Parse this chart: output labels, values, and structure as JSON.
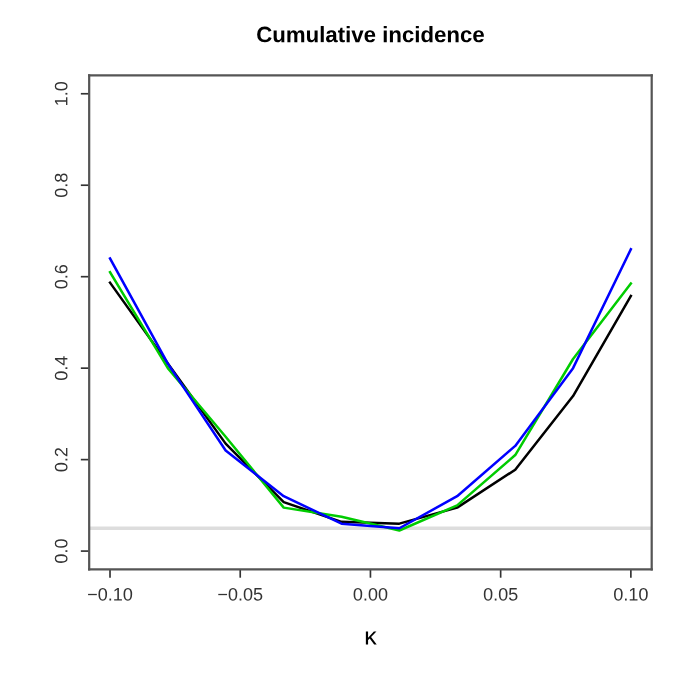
{
  "chart_data": {
    "type": "line",
    "title": "Cumulative incidence",
    "xlabel": "κ",
    "x": [
      -0.1,
      -0.0778,
      -0.0556,
      -0.0333,
      -0.0111,
      0.0111,
      0.0333,
      0.0556,
      0.0778,
      0.1
    ],
    "series": [
      {
        "color": "#000000",
        "values": [
          0.587,
          0.41,
          0.235,
          0.107,
          0.064,
          0.06,
          0.095,
          0.178,
          0.339,
          0.558
        ]
      },
      {
        "color": "#00cc00",
        "values": [
          0.61,
          0.4,
          0.25,
          0.095,
          0.075,
          0.045,
          0.1,
          0.21,
          0.42,
          0.585
        ]
      },
      {
        "color": "#0000ff",
        "values": [
          0.64,
          0.41,
          0.22,
          0.12,
          0.06,
          0.05,
          0.12,
          0.23,
          0.4,
          0.66
        ]
      }
    ],
    "xlim": [
      -0.108,
      0.108
    ],
    "ylim": [
      -0.04,
      1.04
    ],
    "xticks": [
      {
        "value": -0.1,
        "label": "−0.10"
      },
      {
        "value": -0.05,
        "label": "−0.05"
      },
      {
        "value": 0,
        "label": "0.00"
      },
      {
        "value": 0.05,
        "label": "0.05"
      },
      {
        "value": 0.1,
        "label": "0.10"
      }
    ],
    "yticks": [
      {
        "value": 0,
        "label": "0.0"
      },
      {
        "value": 0.2,
        "label": "0.2"
      },
      {
        "value": 0.4,
        "label": "0.4"
      },
      {
        "value": 0.6,
        "label": "0.6"
      },
      {
        "value": 0.8,
        "label": "0.8"
      },
      {
        "value": 1,
        "label": "1.0"
      }
    ],
    "ref_lines": [
      {
        "axis": "y",
        "value": 0.05,
        "color": "#dddddd"
      }
    ],
    "grid": false,
    "legend": false,
    "marker": "none",
    "line_style": "solid"
  }
}
